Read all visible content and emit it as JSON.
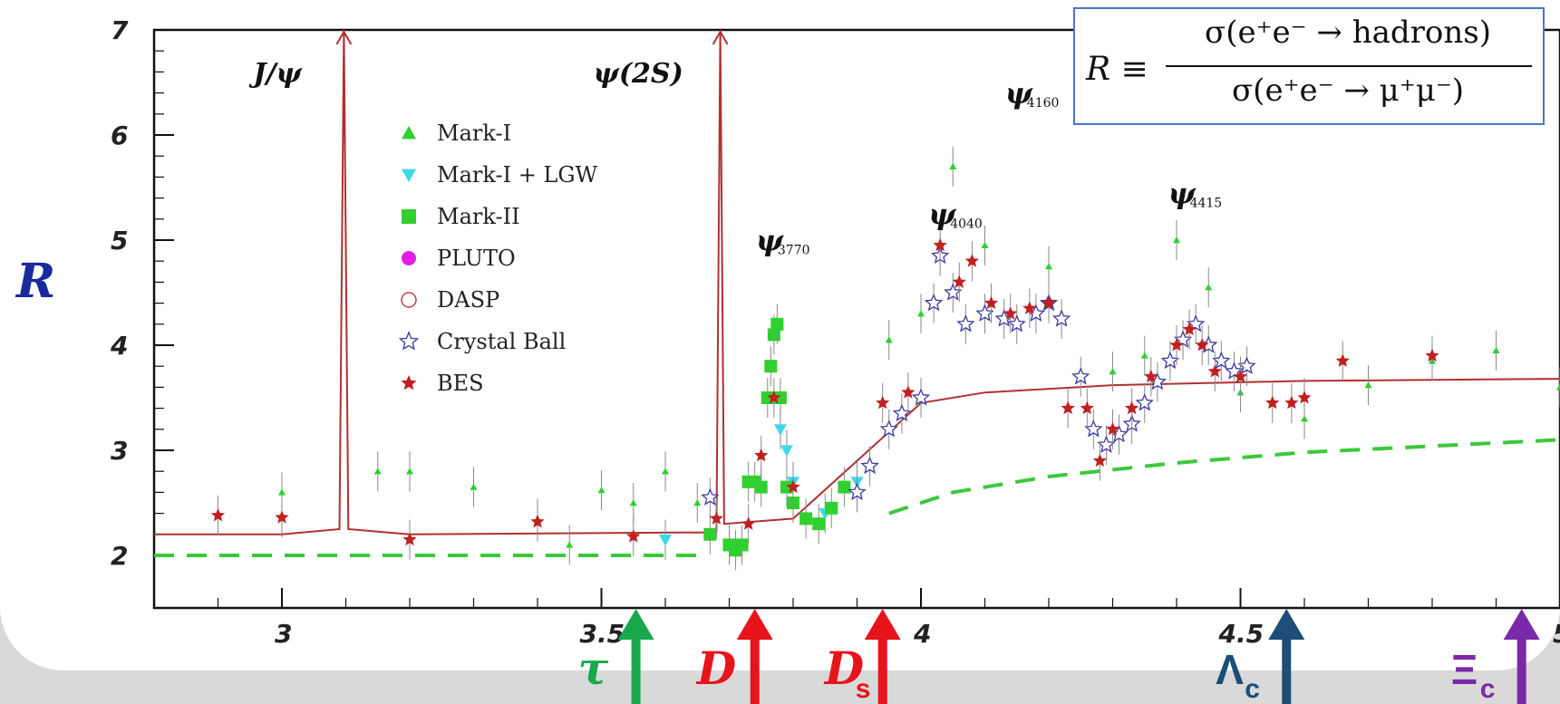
{
  "chart_data": {
    "type": "scatter",
    "title": "",
    "xlabel": "",
    "ylabel": "R",
    "xlim": [
      2.8,
      5.0
    ],
    "ylim": [
      1.5,
      7.0
    ],
    "x_ticks": [
      "3",
      "3.5",
      "4",
      "4.5",
      "5"
    ],
    "y_ticks": [
      "2",
      "3",
      "4",
      "5",
      "6",
      "7"
    ],
    "formula": {
      "lhs": "R ≡",
      "numerator": "σ(e⁺e⁻ → hadrons)",
      "denominator": "σ(e⁺e⁻ → μ⁺μ⁻)"
    },
    "resonance_labels": [
      {
        "name": "J/ψ",
        "x": 3.097,
        "y": 6.5
      },
      {
        "name": "ψ(2S)",
        "x": 3.686,
        "y": 6.5
      },
      {
        "name": "ψ",
        "sub": "3770",
        "x": 3.77,
        "y": 4.9
      },
      {
        "name": "ψ",
        "sub": "4040",
        "x": 4.04,
        "y": 5.15
      },
      {
        "name": "ψ",
        "sub": "4160",
        "x": 4.16,
        "y": 6.3
      },
      {
        "name": "ψ",
        "sub": "4415",
        "x": 4.415,
        "y": 5.35
      }
    ],
    "thresholds": [
      {
        "label": "τ",
        "sub": "",
        "x": 3.554,
        "color": "#1aa84c"
      },
      {
        "label": "D",
        "sub": "",
        "x": 3.74,
        "color": "#e8141c"
      },
      {
        "label": "D",
        "sub": "s",
        "x": 3.94,
        "color": "#e8141c"
      },
      {
        "label": "Λ",
        "sub": "c",
        "x": 4.572,
        "color": "#1c4e78"
      },
      {
        "label": "Ξ",
        "sub": "c",
        "x": 4.94,
        "color": "#7a2aa8"
      }
    ],
    "legend": {
      "placement": "upper-left",
      "items": [
        {
          "name": "Mark-I",
          "marker": "triangle-up",
          "color": "#2fd02f"
        },
        {
          "name": "Mark-I + LGW",
          "marker": "triangle-down",
          "color": "#3ed8e8"
        },
        {
          "name": "Mark-II",
          "marker": "square",
          "color": "#2fd02f"
        },
        {
          "name": "PLUTO",
          "marker": "circle",
          "color": "#e020e0"
        },
        {
          "name": "DASP",
          "marker": "circle-open",
          "color": "#c04050"
        },
        {
          "name": "Crystal Ball",
          "marker": "star-open",
          "color": "#3a3aa0"
        },
        {
          "name": "BES",
          "marker": "star",
          "color": "#c02020"
        }
      ]
    },
    "curves": {
      "qcd_line_color": "#b03030",
      "quark_model_dashed_color": "#3cc83c",
      "qcd_line": [
        [
          2.8,
          2.2
        ],
        [
          3.0,
          2.2
        ],
        [
          3.09,
          2.25
        ],
        [
          3.097,
          7.0
        ],
        [
          3.104,
          2.25
        ],
        [
          3.2,
          2.2
        ],
        [
          3.68,
          2.22
        ],
        [
          3.686,
          7.0
        ],
        [
          3.692,
          2.3
        ],
        [
          3.8,
          2.35
        ],
        [
          3.9,
          2.9
        ],
        [
          4.0,
          3.45
        ],
        [
          4.1,
          3.55
        ],
        [
          4.3,
          3.62
        ],
        [
          4.6,
          3.66
        ],
        [
          5.0,
          3.68
        ]
      ],
      "quark_model_low": [
        [
          2.8,
          2.0
        ],
        [
          3.65,
          2.0
        ]
      ],
      "quark_model_high": [
        [
          3.95,
          2.4
        ],
        [
          4.05,
          2.6
        ],
        [
          4.2,
          2.75
        ],
        [
          4.4,
          2.88
        ],
        [
          4.6,
          2.98
        ],
        [
          5.0,
          3.1
        ]
      ]
    },
    "series": [
      {
        "name": "Mark-I",
        "points": [
          [
            3.0,
            2.6
          ],
          [
            3.15,
            2.8
          ],
          [
            3.2,
            2.8
          ],
          [
            3.3,
            2.65
          ],
          [
            3.4,
            2.35
          ],
          [
            3.45,
            2.1
          ],
          [
            3.5,
            2.62
          ],
          [
            3.55,
            2.5
          ],
          [
            3.6,
            2.8
          ],
          [
            3.65,
            2.5
          ],
          [
            3.95,
            4.05
          ],
          [
            4.0,
            4.3
          ],
          [
            4.05,
            5.7
          ],
          [
            4.1,
            4.95
          ],
          [
            4.2,
            4.75
          ],
          [
            4.3,
            3.75
          ],
          [
            4.35,
            3.9
          ],
          [
            4.4,
            5.0
          ],
          [
            4.45,
            4.55
          ],
          [
            4.5,
            3.55
          ],
          [
            4.6,
            3.3
          ],
          [
            4.7,
            3.62
          ],
          [
            4.8,
            3.85
          ],
          [
            4.9,
            3.95
          ],
          [
            5.0,
            3.6
          ]
        ]
      },
      {
        "name": "Mark-I + LGW",
        "points": [
          [
            3.6,
            2.15
          ],
          [
            3.78,
            3.2
          ],
          [
            3.79,
            3.0
          ],
          [
            3.8,
            2.7
          ],
          [
            3.85,
            2.4
          ],
          [
            3.9,
            2.7
          ]
        ]
      },
      {
        "name": "Mark-II",
        "points": [
          [
            3.67,
            2.2
          ],
          [
            3.7,
            2.1
          ],
          [
            3.71,
            2.05
          ],
          [
            3.72,
            2.1
          ],
          [
            3.73,
            2.7
          ],
          [
            3.74,
            2.7
          ],
          [
            3.75,
            2.65
          ],
          [
            3.76,
            3.5
          ],
          [
            3.765,
            3.8
          ],
          [
            3.77,
            4.1
          ],
          [
            3.775,
            4.2
          ],
          [
            3.78,
            3.5
          ],
          [
            3.79,
            2.65
          ],
          [
            3.8,
            2.5
          ],
          [
            3.82,
            2.35
          ],
          [
            3.84,
            2.3
          ],
          [
            3.86,
            2.45
          ],
          [
            3.88,
            2.65
          ]
        ]
      },
      {
        "name": "Crystal Ball",
        "points": [
          [
            3.67,
            2.55
          ],
          [
            3.9,
            2.6
          ],
          [
            3.92,
            2.85
          ],
          [
            3.95,
            3.2
          ],
          [
            3.97,
            3.35
          ],
          [
            4.0,
            3.5
          ],
          [
            4.02,
            4.4
          ],
          [
            4.03,
            4.85
          ],
          [
            4.05,
            4.5
          ],
          [
            4.07,
            4.2
          ],
          [
            4.1,
            4.3
          ],
          [
            4.13,
            4.25
          ],
          [
            4.15,
            4.2
          ],
          [
            4.18,
            4.3
          ],
          [
            4.2,
            4.4
          ],
          [
            4.22,
            4.25
          ],
          [
            4.25,
            3.7
          ],
          [
            4.27,
            3.2
          ],
          [
            4.29,
            3.05
          ],
          [
            4.31,
            3.15
          ],
          [
            4.33,
            3.25
          ],
          [
            4.35,
            3.45
          ],
          [
            4.37,
            3.65
          ],
          [
            4.39,
            3.85
          ],
          [
            4.41,
            4.05
          ],
          [
            4.43,
            4.2
          ],
          [
            4.45,
            4.0
          ],
          [
            4.47,
            3.85
          ],
          [
            4.49,
            3.75
          ],
          [
            4.51,
            3.8
          ]
        ]
      },
      {
        "name": "BES",
        "points": [
          [
            2.9,
            2.38
          ],
          [
            3.0,
            2.36
          ],
          [
            3.2,
            2.15
          ],
          [
            3.4,
            2.32
          ],
          [
            3.55,
            2.18
          ],
          [
            3.68,
            2.35
          ],
          [
            3.73,
            2.3
          ],
          [
            3.75,
            2.95
          ],
          [
            3.77,
            3.5
          ],
          [
            3.8,
            2.65
          ],
          [
            3.94,
            3.45
          ],
          [
            3.98,
            3.55
          ],
          [
            4.03,
            4.95
          ],
          [
            4.06,
            4.6
          ],
          [
            4.08,
            4.8
          ],
          [
            4.11,
            4.4
          ],
          [
            4.14,
            4.3
          ],
          [
            4.17,
            4.35
          ],
          [
            4.2,
            4.4
          ],
          [
            4.23,
            3.4
          ],
          [
            4.26,
            3.4
          ],
          [
            4.28,
            2.9
          ],
          [
            4.3,
            3.2
          ],
          [
            4.33,
            3.4
          ],
          [
            4.36,
            3.7
          ],
          [
            4.4,
            4.0
          ],
          [
            4.42,
            4.15
          ],
          [
            4.44,
            4.0
          ],
          [
            4.46,
            3.75
          ],
          [
            4.5,
            3.7
          ],
          [
            4.55,
            3.45
          ],
          [
            4.58,
            3.45
          ],
          [
            4.6,
            3.5
          ],
          [
            4.66,
            3.85
          ],
          [
            4.8,
            3.9
          ]
        ]
      }
    ]
  }
}
